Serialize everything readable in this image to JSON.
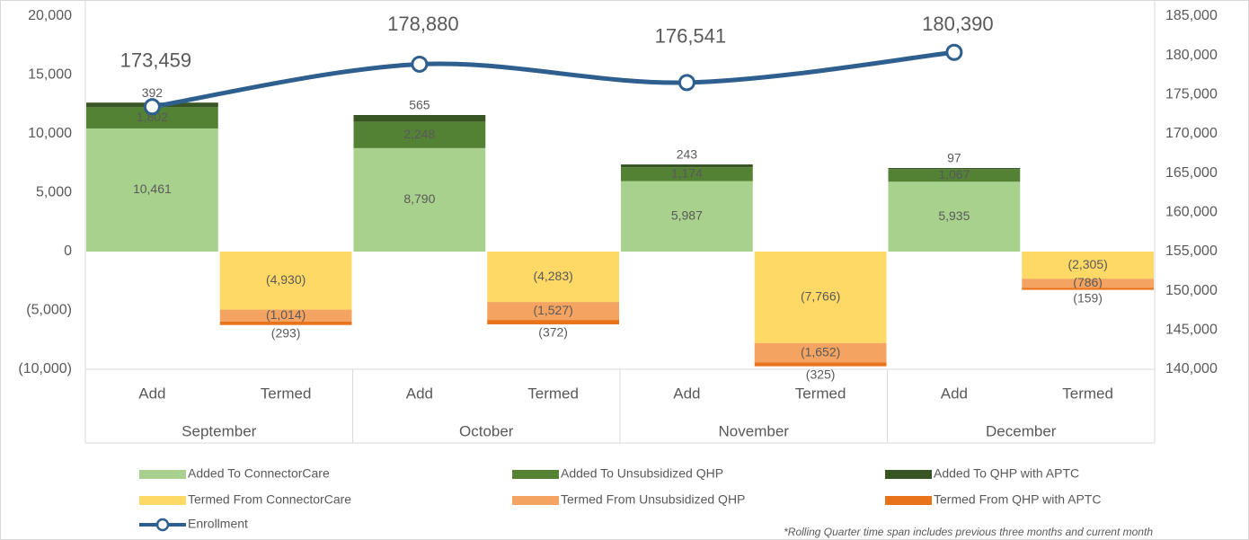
{
  "chart_data": {
    "type": "bar",
    "categories": [
      "Add",
      "Termed",
      "Add",
      "Termed",
      "Add",
      "Termed",
      "Add",
      "Termed"
    ],
    "groups": [
      "September",
      "October",
      "November",
      "December"
    ],
    "stacked": true,
    "grid": false,
    "ylim": [
      -10000,
      20000
    ],
    "yticks": [
      {
        "value": -10000,
        "label": "(10,000)"
      },
      {
        "value": -5000,
        "label": "(5,000)"
      },
      0,
      {
        "value": 5000,
        "label": "5,000"
      },
      {
        "value": 10000,
        "label": "10,000"
      },
      {
        "value": 15000,
        "label": "15,000"
      },
      {
        "value": 20000,
        "label": "20,000"
      }
    ],
    "y2lim": [
      140000,
      185000
    ],
    "y2ticks": [
      {
        "value": 140000,
        "label": "140,000"
      },
      {
        "value": 145000,
        "label": "145,000"
      },
      {
        "value": 150000,
        "label": "150,000"
      },
      {
        "value": 155000,
        "label": "155,000"
      },
      {
        "value": 160000,
        "label": "160,000"
      },
      {
        "value": 165000,
        "label": "165,000"
      },
      {
        "value": 170000,
        "label": "170,000"
      },
      {
        "value": 175000,
        "label": "175,000"
      },
      {
        "value": 180000,
        "label": "180,000"
      },
      {
        "value": 185000,
        "label": "185,000"
      }
    ],
    "series": [
      {
        "name": "Added To ConnectorCare",
        "color": "#a9d18e",
        "values": [
          10461,
          null,
          8790,
          null,
          5987,
          null,
          5935,
          null
        ],
        "value_labels": [
          "10,461",
          null,
          "8,790",
          null,
          "5,987",
          null,
          "5,935",
          null
        ]
      },
      {
        "name": "Added To Unsubsidized QHP",
        "color": "#548235",
        "values": [
          1802,
          null,
          2248,
          null,
          1174,
          null,
          1067,
          null
        ],
        "value_labels": [
          "1,802",
          null,
          "2,248",
          null,
          "1,174",
          null,
          "1,067",
          null
        ]
      },
      {
        "name": "Added To QHP with APTC",
        "color": "#375623",
        "values": [
          392,
          null,
          565,
          null,
          243,
          null,
          97,
          null
        ],
        "value_labels": [
          "392",
          null,
          "565",
          null,
          "243",
          null,
          "97",
          null
        ]
      },
      {
        "name": "Termed From ConnectorCare",
        "color": "#ffd966",
        "values": [
          null,
          -4930,
          null,
          -4283,
          null,
          -7766,
          null,
          -2305
        ],
        "value_labels": [
          null,
          "(4,930)",
          null,
          "(4,283)",
          null,
          "(7,766)",
          null,
          "(2,305)"
        ]
      },
      {
        "name": "Termed From Unsubsidized QHP",
        "color": "#f4a460",
        "values": [
          null,
          -1014,
          null,
          -1527,
          null,
          -1652,
          null,
          -786
        ],
        "value_labels": [
          null,
          "(1,014)",
          null,
          "(1,527)",
          null,
          "(1,652)",
          null,
          "(786)"
        ]
      },
      {
        "name": "Termed From QHP with APTC",
        "color": "#e8731a",
        "values": [
          null,
          -293,
          null,
          -372,
          null,
          -325,
          null,
          -159
        ],
        "value_labels": [
          null,
          "(293)",
          null,
          "(372)",
          null,
          "(325)",
          null,
          "(159)"
        ]
      }
    ],
    "enrollment": {
      "name": "Enrollment",
      "color": "#2e5f8e",
      "axis": "y2",
      "values": [
        173459,
        178880,
        176541,
        180390
      ],
      "value_labels": [
        "173,459",
        "178,880",
        "176,541",
        "180,390"
      ]
    },
    "footnote": "*Rolling Quarter time span includes previous three months and current month"
  }
}
